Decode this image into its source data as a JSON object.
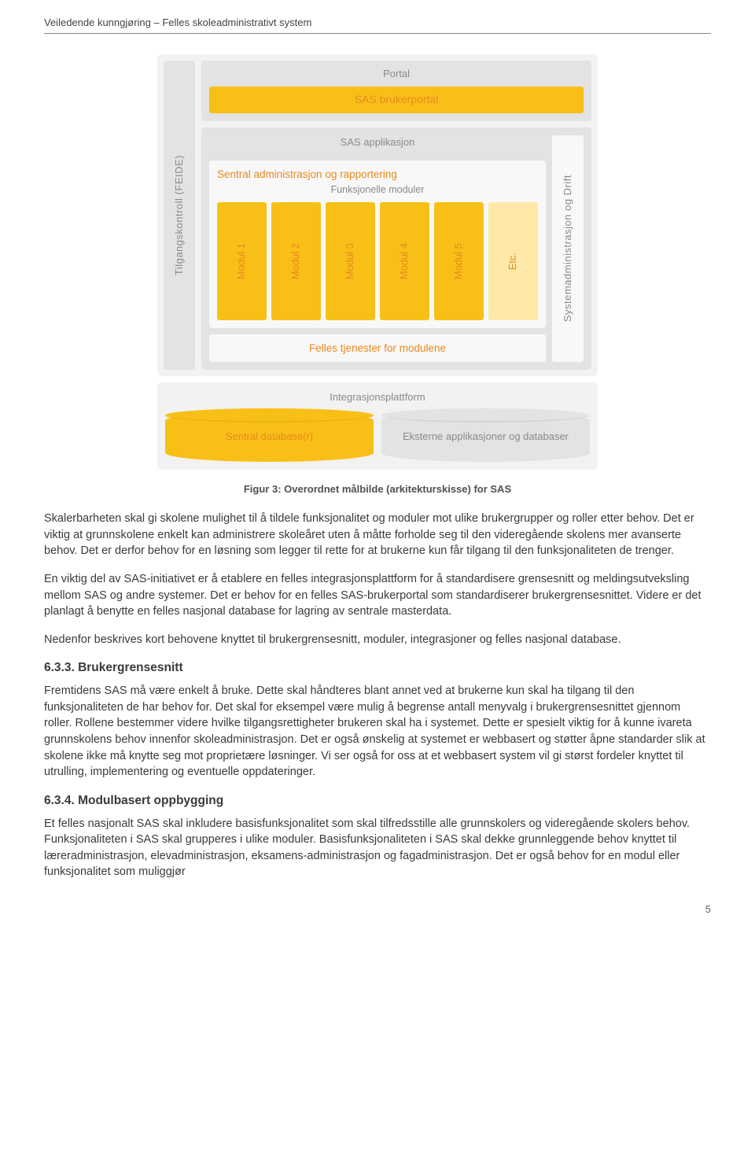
{
  "header": "Veiledende kunngjøring – Felles skoleadministrativt system",
  "diagram": {
    "left_label": "Tilgangskontroll (FEIDE)",
    "portal_title": "Portal",
    "portal_pill": "SAS brukerportal",
    "app_title": "SAS applikasjon",
    "admin_title": "Sentral administrasjon og rapportering",
    "func_title": "Funksjonelle moduler",
    "modules": [
      "Modul 1",
      "Modul 2",
      "Modul 3",
      "Modul 4",
      "Modul 5",
      "Etc."
    ],
    "services_label": "Felles tjenester for modulene",
    "sys_label": "Systemadministrasjon og Drift",
    "integration_title": "Integrasjonsplattform",
    "db_label": "Sentral database(r)",
    "ext_label": "Eksterne applikasjoner og databaser",
    "colors": {
      "orange_fill": "#f8c017",
      "orange_text": "#e8891f",
      "grey_bg": "#f2f2f2",
      "grey_box": "#e3e3e3",
      "grey_text": "#8a8a8a",
      "etc_fill": "#ffe8a8"
    }
  },
  "figure_caption": "Figur 3: Overordnet målbilde (arkitekturskisse) for SAS",
  "para1": "Skalerbarheten skal gi skolene mulighet til å tildele funksjonalitet og moduler mot ulike brukergrupper og roller etter behov. Det er viktig at grunnskolene enkelt kan administrere skoleåret uten å måtte forholde seg til den videregående skolens mer avanserte behov. Det er derfor behov for en løsning som legger til rette for at brukerne kun får tilgang til den funksjonaliteten de trenger.",
  "para2": "En viktig del av SAS-initiativet er å etablere en felles integrasjonsplattform for å standardisere grensesnitt og meldingsutveksling mellom SAS og andre systemer. Det er behov for en felles SAS-brukerportal som standardiserer brukergrensesnittet. Videre er det planlagt å benytte en felles nasjonal database for lagring av sentrale masterdata.",
  "para3": "Nedenfor beskrives kort behovene knyttet til brukergrensesnitt, moduler, integrasjoner og felles nasjonal database.",
  "sect1_title": "6.3.3. Brukergrensesnitt",
  "sect1_body": "Fremtidens SAS må være enkelt å bruke. Dette skal håndteres blant annet ved at brukerne kun skal ha tilgang til den funksjonaliteten de har behov for. Det skal for eksempel være mulig å begrense antall menyvalg i brukergrensesnittet gjennom roller. Rollene bestemmer videre hvilke tilgangsrettigheter brukeren skal ha i systemet. Dette er spesielt viktig for å kunne ivareta grunnskolens behov innenfor skoleadministrasjon. Det er også ønskelig at systemet er webbasert og støtter åpne standarder slik at skolene ikke må knytte seg mot proprietære løsninger. Vi ser også for oss at et webbasert system vil gi størst fordeler knyttet til utrulling, implementering og eventuelle oppdateringer.",
  "sect2_title": "6.3.4. Modulbasert oppbygging",
  "sect2_body": "Et felles nasjonalt SAS skal inkludere basisfunksjonalitet som skal tilfredsstille alle grunnskolers og videregående skolers behov. Funksjonaliteten i SAS skal grupperes i ulike moduler. Basisfunksjonaliteten i SAS skal dekke grunnleggende behov knyttet til læreradministrasjon, elevadministrasjon, eksamens-administrasjon og fagadministrasjon. Det er også behov for en modul eller funksjonalitet som muliggjør",
  "page_number": "5"
}
